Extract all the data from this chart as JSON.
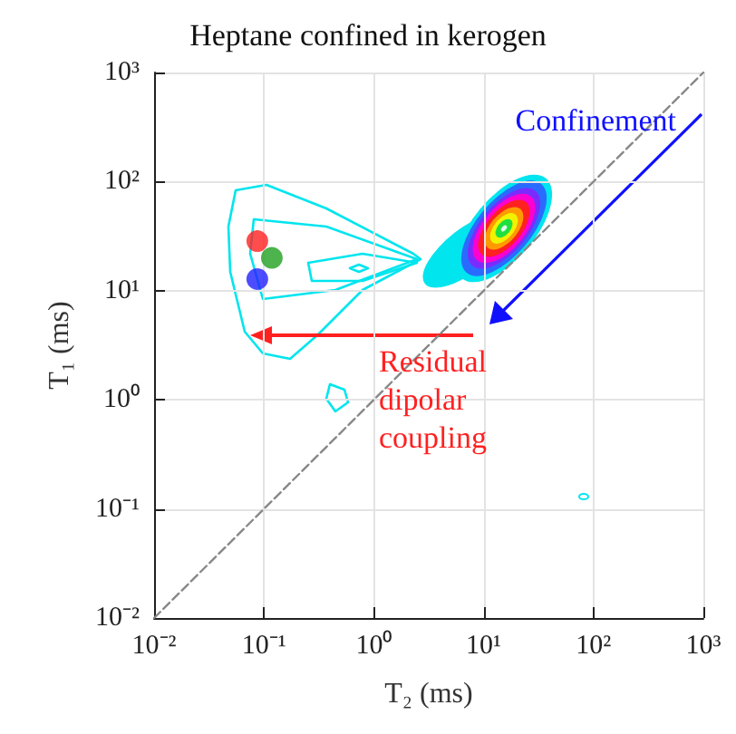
{
  "chart_data": {
    "type": "scatter",
    "title": "Heptane confined in kerogen",
    "xlabel": "T₂ (ms)",
    "ylabel": "T₁ (ms)",
    "log": "xy",
    "grid": true,
    "marker": "circle",
    "xlim": [
      0.01,
      1000
    ],
    "ylim": [
      0.01,
      1000
    ],
    "xticks": [
      {
        "value": 0.01,
        "label": "10⁻²"
      },
      {
        "value": 0.1,
        "label": "10⁻¹"
      },
      {
        "value": 1,
        "label": "10⁰"
      },
      {
        "value": 10,
        "label": "10¹"
      },
      {
        "value": 100,
        "label": "10²"
      },
      {
        "value": 1000,
        "label": "10³"
      }
    ],
    "yticks": [
      {
        "value": 0.01,
        "label": "10⁻²"
      },
      {
        "value": 0.1,
        "label": "10⁻¹"
      },
      {
        "value": 1,
        "label": "10⁰"
      },
      {
        "value": 10,
        "label": "10¹"
      },
      {
        "value": 100,
        "label": "10²"
      },
      {
        "value": 1000,
        "label": "10³"
      }
    ],
    "annotations": [
      "Confinement",
      "Residual dipolar coupling"
    ],
    "series": [
      {
        "type": "line",
        "marker": "none",
        "color": "#888888",
        "line_style": "dashed",
        "x": [
          0.01,
          1000
        ],
        "values": [
          0.01,
          1000
        ]
      },
      {
        "colors": [
          "#ff2020",
          "#20a020",
          "#2020ff"
        ],
        "x": [
          0.087,
          0.118,
          0.087
        ],
        "values": [
          28.5,
          20,
          12.8
        ]
      }
    ]
  }
}
